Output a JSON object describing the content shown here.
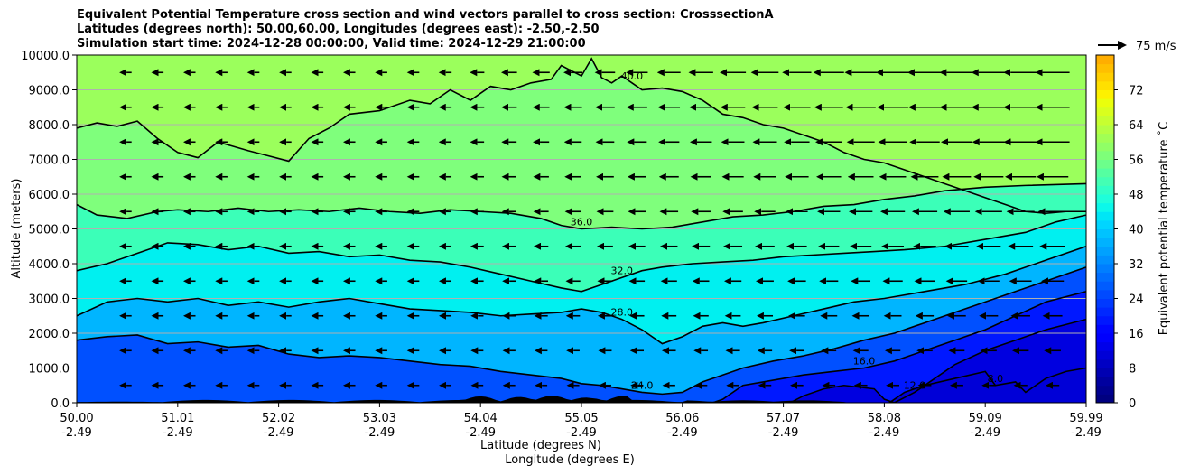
{
  "chart_data": {
    "type": "contour",
    "title_lines": [
      "Equivalent Potential Temperature cross section and wind vectors parallel to cross section: CrosssectionA",
      "Latitudes (degrees north): 50.00,60.00, Longitudes (degrees east): -2.50,-2.50",
      "Simulation start time: 2024-12-28 00:00:00, Valid time: 2024-12-29 21:00:00"
    ],
    "ylabel": "Altitude (meters)",
    "xlabel_lat": "Latitude (degrees N)",
    "xlabel_lon": "Longitude (degrees E)",
    "ylim": [
      0,
      10000
    ],
    "y_ticks": [
      {
        "value": 0,
        "label": "0.0"
      },
      {
        "value": 1000,
        "label": "1000.0"
      },
      {
        "value": 2000,
        "label": "2000.0"
      },
      {
        "value": 3000,
        "label": "3000.0"
      },
      {
        "value": 4000,
        "label": "4000.0"
      },
      {
        "value": 5000,
        "label": "5000.0"
      },
      {
        "value": 6000,
        "label": "6000.0"
      },
      {
        "value": 7000,
        "label": "7000.0"
      },
      {
        "value": 8000,
        "label": "8000.0"
      },
      {
        "value": 9000,
        "label": "9000.0"
      },
      {
        "value": 10000,
        "label": "10000.0"
      }
    ],
    "x_ticks": [
      {
        "lat": "50.00",
        "lon": "-2.49"
      },
      {
        "lat": "51.01",
        "lon": "-2.49"
      },
      {
        "lat": "52.02",
        "lon": "-2.49"
      },
      {
        "lat": "53.03",
        "lon": "-2.49"
      },
      {
        "lat": "54.04",
        "lon": "-2.49"
      },
      {
        "lat": "55.05",
        "lon": "-2.49"
      },
      {
        "lat": "56.06",
        "lon": "-2.49"
      },
      {
        "lat": "57.07",
        "lon": "-2.49"
      },
      {
        "lat": "58.08",
        "lon": "-2.49"
      },
      {
        "lat": "59.09",
        "lon": "-2.49"
      },
      {
        "lat": "59.99",
        "lon": "-2.49"
      }
    ],
    "quiver_key": "75 m/s",
    "colorbar": {
      "label": "Equivalent potential temperature ˚C",
      "range": [
        0,
        80
      ],
      "step": 2,
      "ticks": [
        "0",
        "8",
        "16",
        "24",
        "32",
        "40",
        "48",
        "56",
        "64",
        "72"
      ],
      "colors": [
        "#000080",
        "#00008f",
        "#00009f",
        "#0000b2",
        "#0000c4",
        "#0000d7",
        "#0000ea",
        "#0000fd",
        "#0006ff",
        "#0017ff",
        "#0028ff",
        "#0039ff",
        "#004aff",
        "#005cff",
        "#006dff",
        "#007eff",
        "#0090ff",
        "#00a1ff",
        "#00b2ff",
        "#00c3ff",
        "#00d5ff",
        "#00e6f6",
        "#0cf8ea",
        "#1ffeda",
        "#30ffc7",
        "#43ffb4",
        "#55ffa1",
        "#6cff8b",
        "#7eff79",
        "#90ff66",
        "#a1ff55",
        "#b4ff43",
        "#c7ff30",
        "#d9ff1e",
        "#eaff0c",
        "#fdf100",
        "#ffe000",
        "#ffcf00",
        "#ffbf00",
        "#ffae00",
        "#ff9d00",
        "#ff8c00",
        "#ff7b00",
        "#ff6a00",
        "#ff5900",
        "#ff4800",
        "#ff3700",
        "#ff2600",
        "#ff1500",
        "#e80000",
        "#d40000",
        "#c00000",
        "#ac0000",
        "#980000",
        "#840000",
        "#800000",
        "#800000",
        "#800000",
        "#800000",
        "#800000"
      ]
    },
    "contour_levels": [
      {
        "value": 40,
        "label": "40.0",
        "fill": "#9bff5c",
        "points": [
          [
            0,
            7900
          ],
          [
            0.02,
            8050
          ],
          [
            0.04,
            7950
          ],
          [
            0.06,
            8100
          ],
          [
            0.08,
            7600
          ],
          [
            0.1,
            7200
          ],
          [
            0.12,
            7050
          ],
          [
            0.14,
            7500
          ],
          [
            0.17,
            7250
          ],
          [
            0.19,
            7100
          ],
          [
            0.21,
            6950
          ],
          [
            0.23,
            7600
          ],
          [
            0.25,
            7900
          ],
          [
            0.27,
            8300
          ],
          [
            0.3,
            8400
          ],
          [
            0.33,
            8700
          ],
          [
            0.35,
            8600
          ],
          [
            0.37,
            9000
          ],
          [
            0.39,
            8700
          ],
          [
            0.41,
            9100
          ],
          [
            0.43,
            9000
          ],
          [
            0.45,
            9200
          ],
          [
            0.47,
            9300
          ],
          [
            0.48,
            9700
          ],
          [
            0.5,
            9400
          ],
          [
            0.51,
            9900
          ],
          [
            0.52,
            9350
          ],
          [
            0.53,
            9200
          ],
          [
            0.54,
            9400
          ],
          [
            0.55,
            9200
          ],
          [
            0.56,
            9000
          ],
          [
            0.58,
            9050
          ],
          [
            0.6,
            8950
          ],
          [
            0.62,
            8700
          ],
          [
            0.64,
            8300
          ],
          [
            0.66,
            8200
          ],
          [
            0.68,
            8000
          ],
          [
            0.7,
            7900
          ],
          [
            0.72,
            7700
          ],
          [
            0.74,
            7500
          ],
          [
            0.76,
            7200
          ],
          [
            0.78,
            7000
          ],
          [
            0.8,
            6900
          ],
          [
            0.82,
            6700
          ],
          [
            0.84,
            6500
          ],
          [
            0.86,
            6300
          ],
          [
            0.88,
            6100
          ],
          [
            0.9,
            5900
          ],
          [
            0.92,
            5700
          ],
          [
            0.94,
            5500
          ],
          [
            0.96,
            5450
          ],
          [
            0.98,
            5500
          ],
          [
            1,
            5500
          ]
        ]
      },
      {
        "value": 36,
        "label": "36.0",
        "fill": "#55ffa1",
        "points": [
          [
            0,
            5700
          ],
          [
            0.02,
            5400
          ],
          [
            0.05,
            5300
          ],
          [
            0.08,
            5500
          ],
          [
            0.1,
            5550
          ],
          [
            0.13,
            5500
          ],
          [
            0.16,
            5600
          ],
          [
            0.19,
            5500
          ],
          [
            0.22,
            5550
          ],
          [
            0.25,
            5500
          ],
          [
            0.28,
            5600
          ],
          [
            0.31,
            5500
          ],
          [
            0.34,
            5450
          ],
          [
            0.37,
            5550
          ],
          [
            0.4,
            5500
          ],
          [
            0.43,
            5450
          ],
          [
            0.46,
            5300
          ],
          [
            0.48,
            5100
          ],
          [
            0.5,
            5000
          ],
          [
            0.53,
            5050
          ],
          [
            0.56,
            5000
          ],
          [
            0.59,
            5050
          ],
          [
            0.62,
            5200
          ],
          [
            0.65,
            5350
          ],
          [
            0.68,
            5400
          ],
          [
            0.71,
            5500
          ],
          [
            0.74,
            5650
          ],
          [
            0.77,
            5700
          ],
          [
            0.8,
            5850
          ],
          [
            0.83,
            5950
          ],
          [
            0.86,
            6100
          ],
          [
            0.9,
            6200
          ],
          [
            0.94,
            6250
          ],
          [
            1,
            6300
          ]
        ]
      },
      {
        "value": 32,
        "label": "32.0",
        "fill": "#1ffeda",
        "points": [
          [
            0,
            3800
          ],
          [
            0.03,
            4000
          ],
          [
            0.06,
            4300
          ],
          [
            0.09,
            4600
          ],
          [
            0.12,
            4550
          ],
          [
            0.15,
            4400
          ],
          [
            0.18,
            4500
          ],
          [
            0.21,
            4300
          ],
          [
            0.24,
            4350
          ],
          [
            0.27,
            4200
          ],
          [
            0.3,
            4250
          ],
          [
            0.33,
            4100
          ],
          [
            0.36,
            4050
          ],
          [
            0.39,
            3900
          ],
          [
            0.42,
            3700
          ],
          [
            0.45,
            3500
          ],
          [
            0.48,
            3300
          ],
          [
            0.5,
            3200
          ],
          [
            0.52,
            3400
          ],
          [
            0.54,
            3600
          ],
          [
            0.56,
            3800
          ],
          [
            0.58,
            3900
          ],
          [
            0.61,
            4000
          ],
          [
            0.64,
            4050
          ],
          [
            0.67,
            4100
          ],
          [
            0.7,
            4200
          ],
          [
            0.73,
            4250
          ],
          [
            0.76,
            4300
          ],
          [
            0.79,
            4350
          ],
          [
            0.82,
            4400
          ],
          [
            0.86,
            4500
          ],
          [
            0.9,
            4700
          ],
          [
            0.94,
            4900
          ],
          [
            0.97,
            5200
          ],
          [
            1,
            5400
          ]
        ]
      },
      {
        "value": 28,
        "label": "28.0",
        "fill": "#00d5ff",
        "points": [
          [
            0,
            2500
          ],
          [
            0.03,
            2900
          ],
          [
            0.06,
            3000
          ],
          [
            0.09,
            2900
          ],
          [
            0.12,
            3000
          ],
          [
            0.15,
            2800
          ],
          [
            0.18,
            2900
          ],
          [
            0.21,
            2750
          ],
          [
            0.24,
            2900
          ],
          [
            0.27,
            3000
          ],
          [
            0.3,
            2850
          ],
          [
            0.33,
            2700
          ],
          [
            0.36,
            2650
          ],
          [
            0.39,
            2600
          ],
          [
            0.42,
            2500
          ],
          [
            0.45,
            2550
          ],
          [
            0.48,
            2600
          ],
          [
            0.5,
            2700
          ],
          [
            0.52,
            2600
          ],
          [
            0.54,
            2400
          ],
          [
            0.56,
            2100
          ],
          [
            0.58,
            1700
          ],
          [
            0.6,
            1900
          ],
          [
            0.62,
            2200
          ],
          [
            0.64,
            2300
          ],
          [
            0.66,
            2200
          ],
          [
            0.68,
            2300
          ],
          [
            0.71,
            2500
          ],
          [
            0.74,
            2700
          ],
          [
            0.77,
            2900
          ],
          [
            0.8,
            3000
          ],
          [
            0.84,
            3200
          ],
          [
            0.88,
            3400
          ],
          [
            0.92,
            3700
          ],
          [
            0.96,
            4100
          ],
          [
            1,
            4500
          ]
        ]
      },
      {
        "value": 24,
        "label": "24.0",
        "fill": "#0090ff",
        "points": [
          [
            0,
            1800
          ],
          [
            0.03,
            1900
          ],
          [
            0.06,
            1950
          ],
          [
            0.09,
            1700
          ],
          [
            0.12,
            1750
          ],
          [
            0.15,
            1600
          ],
          [
            0.18,
            1650
          ],
          [
            0.21,
            1400
          ],
          [
            0.24,
            1300
          ],
          [
            0.27,
            1350
          ],
          [
            0.3,
            1300
          ],
          [
            0.33,
            1200
          ],
          [
            0.36,
            1100
          ],
          [
            0.39,
            1050
          ],
          [
            0.42,
            900
          ],
          [
            0.45,
            800
          ],
          [
            0.48,
            700
          ],
          [
            0.5,
            550
          ],
          [
            0.52,
            500
          ],
          [
            0.54,
            400
          ],
          [
            0.56,
            300
          ],
          [
            0.58,
            250
          ],
          [
            0.6,
            300
          ],
          [
            0.62,
            600
          ],
          [
            0.64,
            800
          ],
          [
            0.66,
            1000
          ],
          [
            0.69,
            1200
          ],
          [
            0.72,
            1350
          ],
          [
            0.75,
            1550
          ],
          [
            0.78,
            1800
          ],
          [
            0.81,
            2000
          ],
          [
            0.84,
            2300
          ],
          [
            0.87,
            2600
          ],
          [
            0.9,
            2900
          ],
          [
            0.93,
            3200
          ],
          [
            0.96,
            3500
          ],
          [
            1,
            3900
          ]
        ]
      },
      {
        "value": 16,
        "label": "16.0",
        "fill": "#0039ff",
        "points": [
          [
            0,
            -100
          ],
          [
            0.6,
            -100
          ],
          [
            0.62,
            -100
          ],
          [
            0.64,
            100
          ],
          [
            0.66,
            500
          ],
          [
            0.68,
            600
          ],
          [
            0.7,
            700
          ],
          [
            0.72,
            800
          ],
          [
            0.75,
            900
          ],
          [
            0.78,
            1000
          ],
          [
            0.81,
            1200
          ],
          [
            0.84,
            1500
          ],
          [
            0.87,
            1800
          ],
          [
            0.9,
            2100
          ],
          [
            0.93,
            2500
          ],
          [
            0.96,
            2900
          ],
          [
            1,
            3200
          ]
        ]
      },
      {
        "value": 12,
        "label": "12.0",
        "fill": "#0006ff",
        "points": [
          [
            0,
            -100
          ],
          [
            0.7,
            -100
          ],
          [
            0.72,
            200
          ],
          [
            0.74,
            400
          ],
          [
            0.76,
            500
          ],
          [
            0.79,
            400
          ],
          [
            0.8,
            100
          ],
          [
            0.81,
            0
          ],
          [
            0.83,
            300
          ],
          [
            0.85,
            700
          ],
          [
            0.87,
            1100
          ],
          [
            0.9,
            1500
          ],
          [
            0.93,
            1800
          ],
          [
            0.96,
            2100
          ],
          [
            1,
            2400
          ]
        ]
      },
      {
        "value": 8,
        "label": "8.0",
        "fill": "#0000d7",
        "points": [
          [
            0,
            -100
          ],
          [
            0.8,
            -100
          ],
          [
            0.82,
            300
          ],
          [
            0.84,
            500
          ],
          [
            0.87,
            700
          ],
          [
            0.9,
            900
          ],
          [
            0.91,
            500
          ],
          [
            0.93,
            600
          ],
          [
            0.94,
            300
          ],
          [
            0.96,
            700
          ],
          [
            0.98,
            900
          ],
          [
            1,
            1000
          ]
        ]
      }
    ]
  }
}
